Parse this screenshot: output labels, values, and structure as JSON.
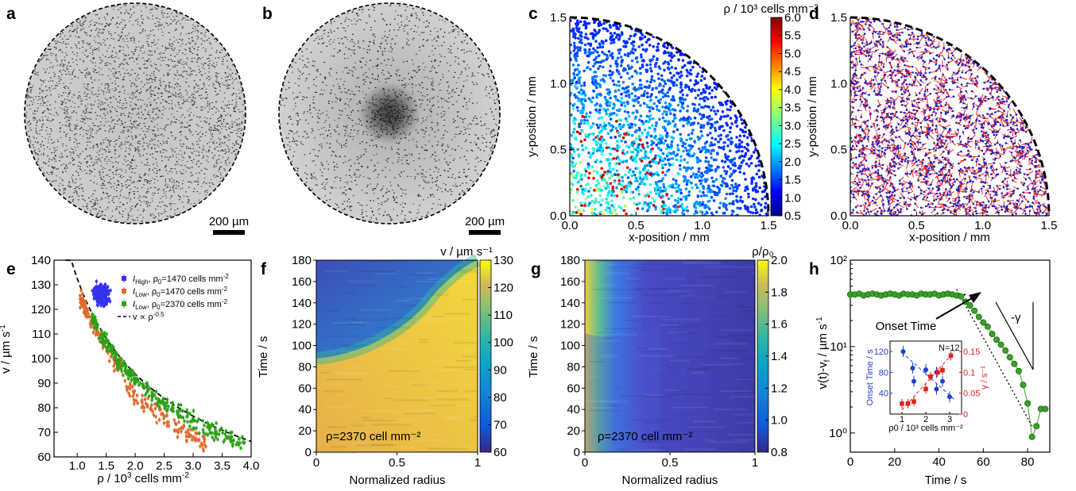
{
  "panels": {
    "a": {
      "label": "a",
      "scale_bar": "200 µm"
    },
    "b": {
      "label": "b",
      "scale_bar": "200 µm"
    },
    "c": {
      "label": "c",
      "xlabel": "x-position / mm",
      "ylabel": "y-position / mm",
      "cbar_title": "ρ / 10³ cells mm⁻²"
    },
    "d": {
      "label": "d",
      "xlabel": "x-position / mm",
      "ylabel": "y-position / mm"
    },
    "e": {
      "label": "e"
    },
    "f": {
      "label": "f",
      "xlabel": "Normalized radius",
      "ylabel": "Time / s",
      "cbar_title": "v / µm s⁻¹",
      "annotation": "ρ=2370 cell mm⁻²"
    },
    "g": {
      "label": "g",
      "xlabel": "Normalized radius",
      "ylabel": "Time / s",
      "cbar_title": "ρ/ρ₀",
      "annotation": "ρ=2370 cell mm⁻²"
    },
    "h": {
      "label": "h",
      "annotation_onset": "Onset Time",
      "annotation_slope": "-γ",
      "inset_n": "N=12"
    }
  },
  "chart_data": [
    {
      "panel": "c",
      "type": "scatter",
      "xlabel": "x-position / mm",
      "ylabel": "y-position / mm",
      "xlim": [
        0,
        1.5
      ],
      "ylim": [
        0,
        1.5
      ],
      "xticks": [
        "0.0",
        "0.5",
        "1.0",
        "1.5"
      ],
      "yticks": [
        "0.0",
        "0.5",
        "1.0",
        "1.5"
      ],
      "colorbar": {
        "title": "ρ / 10³ cells mm⁻²",
        "range": [
          0.5,
          6.0
        ],
        "ticks": [
          "0.5",
          "1.0",
          "1.5",
          "2.0",
          "2.5",
          "3.0",
          "3.5",
          "4.0",
          "4.5",
          "5.0",
          "5.5",
          "6.0"
        ]
      }
    },
    {
      "panel": "d",
      "type": "scatter",
      "xlabel": "x-position / mm",
      "ylabel": "y-position / mm",
      "xlim": [
        0,
        1.5
      ],
      "ylim": [
        0,
        1.5
      ],
      "xticks": [
        "0.0",
        "0.5",
        "1.0",
        "1.5"
      ],
      "yticks": [
        "0.0",
        "0.5",
        "1.0",
        "1.5"
      ]
    },
    {
      "panel": "e",
      "type": "scatter",
      "xlabel": "ρ / 10³ cells mm⁻²",
      "ylabel": "v / µm s⁻¹",
      "xlim": [
        0.6,
        4.0
      ],
      "ylim": [
        60,
        140
      ],
      "xticks": [
        "1.0",
        "1.5",
        "2.0",
        "2.5",
        "3.0",
        "3.5",
        "4.0"
      ],
      "yticks": [
        "60",
        "70",
        "80",
        "90",
        "100",
        "110",
        "120",
        "130",
        "140"
      ],
      "legend_position": "top-right",
      "series": [
        {
          "name": "I_High, ρ₀=1470 cells mm⁻²",
          "color": "#3333ee",
          "center": [
            1.42,
            126
          ],
          "spread": [
            0.12,
            4
          ]
        },
        {
          "name": "I_Low, ρ₀=1470 cells mm⁻²",
          "color": "#e06a2c"
        },
        {
          "name": "I_Low, ρ₀=2370 cells mm⁻²",
          "color": "#2ea019"
        }
      ],
      "fit": {
        "name": "v ∝ ρ⁻⁰·⁵",
        "exponent": -0.5,
        "coef": 132.6
      }
    },
    {
      "panel": "f",
      "type": "heatmap",
      "xlabel": "Normalized radius",
      "ylabel": "Time / s",
      "xlim": [
        0,
        1
      ],
      "ylim": [
        0,
        180
      ],
      "xticks": [
        "0",
        "0.5",
        "1"
      ],
      "yticks": [
        "0",
        "20",
        "40",
        "60",
        "80",
        "100",
        "120",
        "140",
        "160",
        "180"
      ],
      "colorbar": {
        "title": "v / µm s⁻¹",
        "range": [
          60,
          130
        ],
        "ticks": [
          "60",
          "70",
          "80",
          "90",
          "100",
          "110",
          "120",
          "130"
        ]
      }
    },
    {
      "panel": "g",
      "type": "heatmap",
      "xlabel": "Normalized radius",
      "ylabel": "Time / s",
      "xlim": [
        0,
        1
      ],
      "ylim": [
        0,
        180
      ],
      "xticks": [
        "0",
        "0.5",
        "1"
      ],
      "yticks": [
        "0",
        "20",
        "40",
        "60",
        "80",
        "100",
        "120",
        "140",
        "160",
        "180"
      ],
      "colorbar": {
        "title": "ρ/ρ₀",
        "range": [
          0.8,
          2.0
        ],
        "ticks": [
          "0.8",
          "1.0",
          "1.2",
          "1.4",
          "1.6",
          "1.8",
          "2.0"
        ]
      }
    },
    {
      "panel": "h",
      "type": "line",
      "xlabel": "Time / s",
      "ylabel": "v(t)-v_f / µm s⁻¹",
      "yscale": "log",
      "xlim": [
        0,
        90
      ],
      "ylim": [
        0.6,
        100
      ],
      "xticks": [
        "0",
        "20",
        "40",
        "60",
        "80"
      ],
      "yticks": [
        "10⁰",
        "10¹",
        "10²"
      ],
      "series": [
        {
          "name": "",
          "color": "#3aa02a",
          "x": [
            0,
            2,
            4,
            6,
            8,
            10,
            12,
            14,
            16,
            18,
            20,
            22,
            24,
            26,
            28,
            30,
            32,
            34,
            36,
            38,
            40,
            42,
            44,
            46,
            48,
            50,
            52,
            54,
            56,
            58,
            60,
            62,
            64,
            66,
            68,
            70,
            72,
            74,
            76,
            78,
            80,
            82,
            84,
            86,
            88
          ],
          "y": [
            40,
            40,
            41,
            39,
            40,
            41,
            40,
            39,
            40,
            41,
            40,
            39,
            41,
            40,
            40,
            39,
            41,
            40,
            40,
            41,
            39,
            40,
            41,
            40,
            39,
            38,
            33,
            30,
            26,
            22,
            19,
            17,
            14,
            12,
            10.5,
            9,
            7.5,
            6.3,
            5.2,
            3.6,
            2.2,
            0.9,
            1.2,
            1.9,
            1.9
          ]
        }
      ],
      "fit_plateau": 40,
      "onset_time": 50,
      "inset": {
        "xlabel": "ρ0 / 10³ cells mm⁻²",
        "ylabel_left": "Onset Time / s",
        "ylabel_right": "γ / s⁻¹",
        "xlim": [
          0.5,
          3.5
        ],
        "ylim_left": [
          0,
          140
        ],
        "ylim_right": [
          0,
          0.175
        ],
        "xticks": [
          "1",
          "2",
          "3"
        ],
        "yticks_left": [
          "40",
          "80",
          "120"
        ],
        "yticks_right": [
          "0",
          "0.05",
          "0.1",
          "0.15"
        ],
        "onset_points": [
          [
            1.05,
            120
          ],
          [
            1.45,
            88
          ],
          [
            1.5,
            63
          ],
          [
            2.0,
            85
          ],
          [
            2.45,
            80
          ],
          [
            2.7,
            63
          ],
          [
            2.45,
            48
          ],
          [
            3.0,
            33
          ]
        ],
        "gamma_points": [
          [
            1.0,
            0.025
          ],
          [
            1.25,
            0.025
          ],
          [
            1.5,
            0.03
          ],
          [
            2.0,
            0.06
          ],
          [
            2.2,
            0.09
          ],
          [
            2.5,
            0.1
          ],
          [
            2.7,
            0.105
          ],
          [
            3.05,
            0.14
          ]
        ]
      }
    }
  ]
}
